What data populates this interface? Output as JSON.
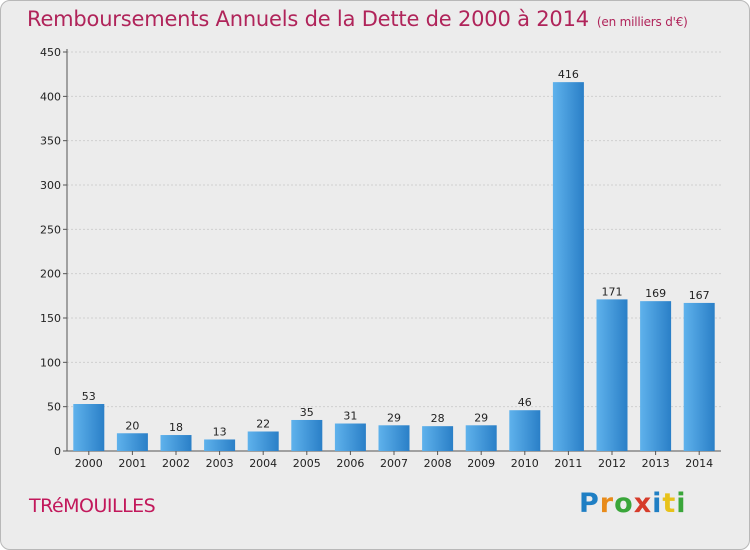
{
  "title": "Remboursements Annuels de la Dette de 2000 à 2014",
  "unit": "(en milliers d'€)",
  "town": "TRéMOUILLES",
  "logo": {
    "letters": [
      "P",
      "r",
      "o",
      "x",
      "i",
      "t",
      "i"
    ],
    "colors": [
      "#1f7fc4",
      "#e88b1a",
      "#3aa63a",
      "#d63b2a",
      "#1f7fc4",
      "#e8c21a",
      "#3aa63a"
    ]
  },
  "chart_data": {
    "type": "bar",
    "categories": [
      "2000",
      "2001",
      "2002",
      "2003",
      "2004",
      "2005",
      "2006",
      "2007",
      "2008",
      "2009",
      "2010",
      "2011",
      "2012",
      "2013",
      "2014"
    ],
    "values": [
      53,
      20,
      18,
      13,
      22,
      35,
      31,
      29,
      28,
      29,
      46,
      416,
      171,
      169,
      167
    ],
    "ylim": [
      0,
      450
    ],
    "yticks": [
      0,
      50,
      100,
      150,
      200,
      250,
      300,
      350,
      400,
      450
    ],
    "grid": true,
    "bar_color": "#2e8bd6"
  }
}
